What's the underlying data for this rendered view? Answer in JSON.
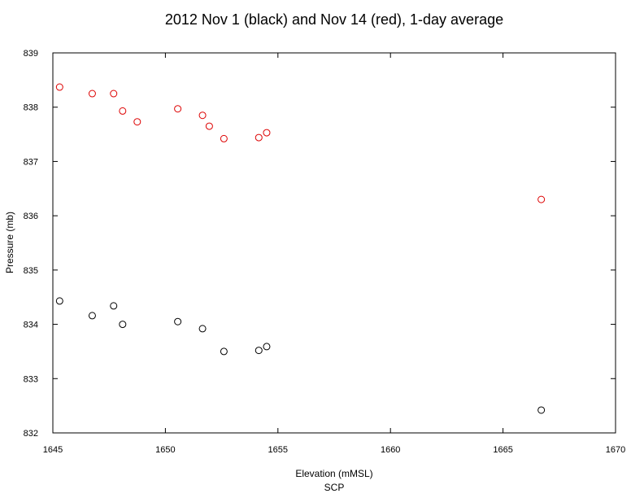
{
  "chart_data": {
    "type": "scatter",
    "title": "2012 Nov 1 (black)  and Nov 14 (red), 1-day average",
    "xlabel": "Elevation (mMSL)",
    "xlabel_sub": "SCP",
    "ylabel": "Pressure (mb)",
    "xlim": [
      1645,
      1670
    ],
    "ylim": [
      832,
      839
    ],
    "xticks": [
      1645,
      1650,
      1655,
      1660,
      1665,
      1670
    ],
    "yticks": [
      832,
      833,
      834,
      835,
      836,
      837,
      838,
      839
    ],
    "grid": false,
    "series": [
      {
        "color": "#000000",
        "marker": "open-circle",
        "points": [
          [
            1645.3,
            834.43
          ],
          [
            1646.75,
            834.16
          ],
          [
            1647.7,
            834.34
          ],
          [
            1648.1,
            834.0
          ],
          [
            1650.55,
            834.05
          ],
          [
            1651.65,
            833.92
          ],
          [
            1652.6,
            833.5
          ],
          [
            1654.15,
            833.52
          ],
          [
            1654.5,
            833.59
          ],
          [
            1666.7,
            832.42
          ]
        ]
      },
      {
        "color": "#dd0000",
        "marker": "open-circle",
        "points": [
          [
            1645.3,
            838.37
          ],
          [
            1646.75,
            838.25
          ],
          [
            1647.7,
            838.25
          ],
          [
            1648.1,
            837.93
          ],
          [
            1648.75,
            837.73
          ],
          [
            1650.55,
            837.97
          ],
          [
            1651.65,
            837.85
          ],
          [
            1651.95,
            837.65
          ],
          [
            1652.6,
            837.42
          ],
          [
            1654.15,
            837.44
          ],
          [
            1654.5,
            837.53
          ],
          [
            1666.7,
            836.3
          ]
        ]
      }
    ]
  }
}
